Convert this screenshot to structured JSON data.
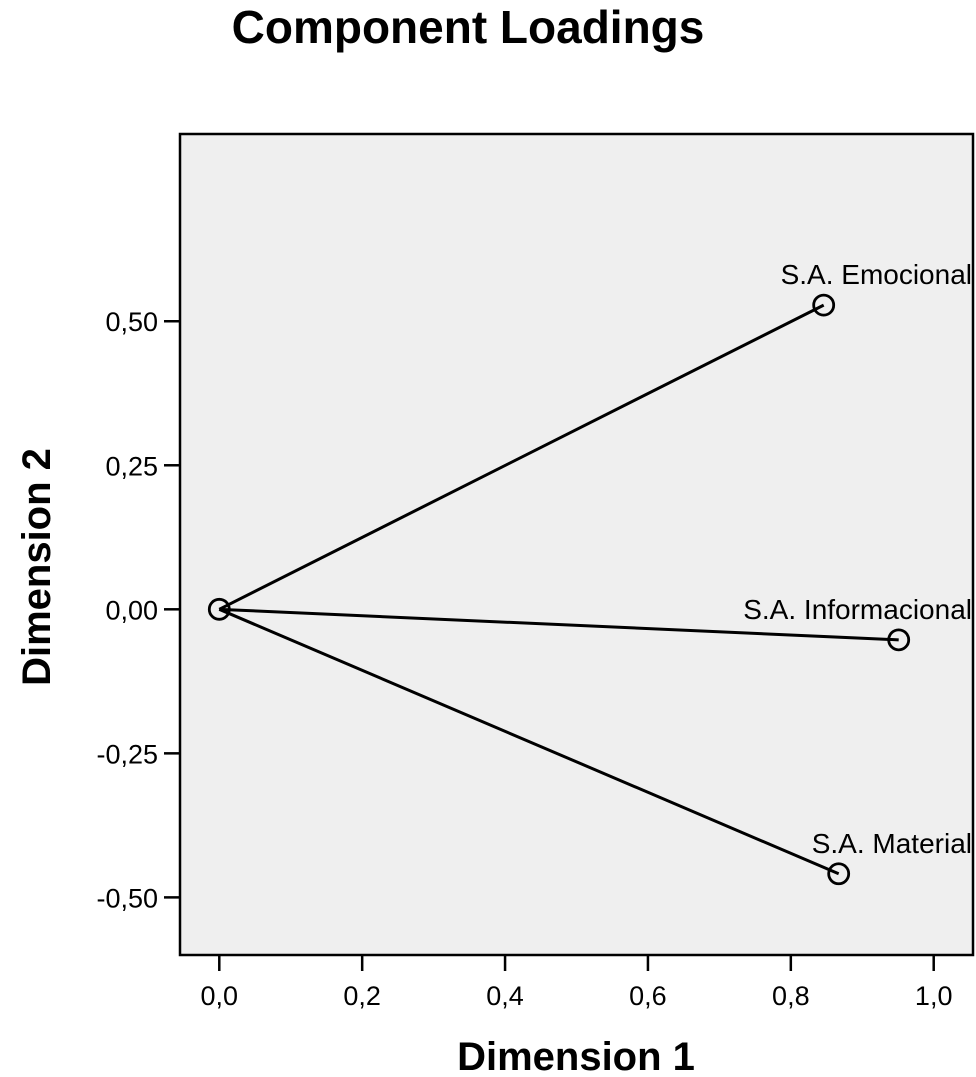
{
  "chart_data": {
    "type": "scatter",
    "title": "Component Loadings",
    "xlabel": "Dimension 1",
    "ylabel": "Dimension 2",
    "xlim": [
      -0.055,
      1.055
    ],
    "ylim": [
      -0.6,
      0.825
    ],
    "xticks": [
      0.0,
      0.2,
      0.4,
      0.6,
      0.8,
      1.0
    ],
    "xtick_labels": [
      "0,0",
      "0,2",
      "0,4",
      "0,6",
      "0,8",
      "1,0"
    ],
    "yticks": [
      0.5,
      0.25,
      0.0,
      -0.25,
      -0.5
    ],
    "ytick_labels": [
      "0,50",
      "0,25",
      "0,00",
      "-0,25",
      "-0,50"
    ],
    "origin": {
      "x": 0.0,
      "y": 0.0
    },
    "points": [
      {
        "label": "S.A. Emocional",
        "x": 0.846,
        "y": 0.528
      },
      {
        "label": "S.A. Informacional",
        "x": 0.951,
        "y": -0.053
      },
      {
        "label": "S.A. Material",
        "x": 0.867,
        "y": -0.459
      }
    ],
    "vectors_from_origin": true,
    "grid": false,
    "plot_background": "#efefef",
    "line_color": "#000000"
  }
}
